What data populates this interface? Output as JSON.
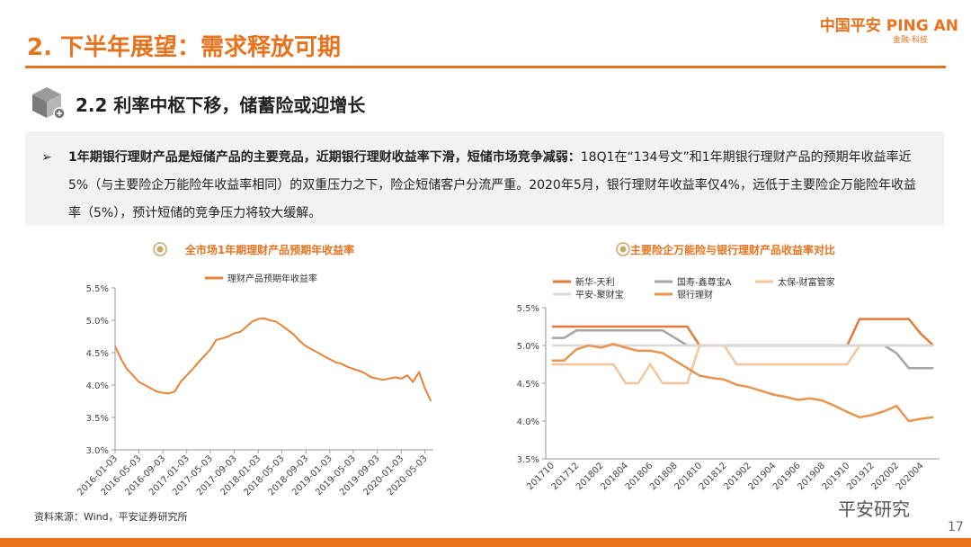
{
  "header": {
    "title": "2. 下半年展望：需求释放可期",
    "logo": "中国平安 PING AN",
    "logo_sub": "金融·科技",
    "subtitle": "2.2 利率中枢下移，储蓄险或迎增长"
  },
  "bullet": {
    "lead": "1年期银行理财产品是短储产品的主要竞品，近期银行理财收益率下滑，短储市场竞争减弱：",
    "text": "18Q1在“134号文”和1年期银行理财产品的预期年收益率近5%（与主要险企万能险年收益率相同）的双重压力之下，险企短储客户分流严重。2020年5月，银行理财年收益率仅4%，远低于主要险企万能险年收益率（5%），预计短储的竞争压力将较大缓解。"
  },
  "source": "资料来源：Wind，平安证券研究所",
  "watermark": "平安研究",
  "page_number": "17",
  "chart_data": [
    {
      "type": "line",
      "title": "全市场1年期理财产品预期年收益率",
      "x": [
        "2016-01-03",
        "2016-02-03",
        "2016-03-03",
        "2016-04-03",
        "2016-05-03",
        "2016-06-03",
        "2016-07-03",
        "2016-08-03",
        "2016-09-03",
        "2016-10-03",
        "2016-11-03",
        "2016-12-03",
        "2017-01-03",
        "2017-02-03",
        "2017-03-03",
        "2017-04-03",
        "2017-05-03",
        "2017-06-03",
        "2017-07-03",
        "2017-08-03",
        "2017-09-03",
        "2017-10-03",
        "2017-11-03",
        "2017-12-03",
        "2018-01-03",
        "2018-02-03",
        "2018-03-03",
        "2018-04-03",
        "2018-05-03",
        "2018-06-03",
        "2018-07-03",
        "2018-08-03",
        "2018-09-03",
        "2018-10-03",
        "2018-11-03",
        "2018-12-03",
        "2019-01-03",
        "2019-02-03",
        "2019-03-03",
        "2019-04-03",
        "2019-05-03",
        "2019-06-03",
        "2019-07-03",
        "2019-08-03",
        "2019-09-03",
        "2019-10-03",
        "2019-11-03",
        "2019-12-03",
        "2020-01-03",
        "2020-02-03",
        "2020-03-03",
        "2020-04-03",
        "2020-05-03",
        "2020-06-03"
      ],
      "series": [
        {
          "name": "理财产品预期年收益率",
          "color": "#e8833a",
          "values": [
            4.6,
            4.4,
            4.25,
            4.15,
            4.05,
            4.0,
            3.95,
            3.9,
            3.88,
            3.87,
            3.9,
            4.05,
            4.15,
            4.25,
            4.35,
            4.45,
            4.55,
            4.7,
            4.72,
            4.75,
            4.8,
            4.82,
            4.9,
            4.98,
            5.02,
            5.03,
            5.0,
            4.98,
            4.92,
            4.85,
            4.78,
            4.68,
            4.6,
            4.55,
            4.5,
            4.45,
            4.4,
            4.35,
            4.33,
            4.28,
            4.25,
            4.22,
            4.18,
            4.12,
            4.1,
            4.08,
            4.1,
            4.12,
            4.1,
            4.15,
            4.05,
            4.2,
            3.95,
            3.75
          ]
        }
      ],
      "xlim": [
        "2016-01-03",
        "2020-06-15"
      ],
      "xticks": [
        "2016-01-03",
        "2016-05-03",
        "2016-09-03",
        "2017-01-03",
        "2017-05-03",
        "2017-09-03",
        "2018-01-03",
        "2018-05-03",
        "2018-09-03",
        "2019-01-03",
        "2019-05-03",
        "2019-09-03",
        "2020-01-03",
        "2020-05-03"
      ],
      "ylim": [
        3.0,
        5.5
      ],
      "yticks": [
        {
          "value": 3.0,
          "label": "3.0%"
        },
        {
          "value": 3.5,
          "label": "3.5%"
        },
        {
          "value": 4.0,
          "label": "4.0%"
        },
        {
          "value": 4.5,
          "label": "4.5%"
        },
        {
          "value": 5.0,
          "label": "5.0%"
        },
        {
          "value": 5.5,
          "label": "5.5%"
        }
      ]
    },
    {
      "type": "line",
      "title": "主要险企万能险与银行理财产品收益率对比",
      "categories": [
        "201710",
        null,
        "201712",
        null,
        "201802",
        null,
        "201804",
        null,
        "201806",
        null,
        "201808",
        null,
        "201810",
        null,
        "201812",
        null,
        "201902",
        null,
        "201904",
        null,
        "201906",
        null,
        "201908",
        null,
        "201910",
        null,
        "201912",
        null,
        "202002",
        null,
        "202004",
        null
      ],
      "series": [
        {
          "name": "新华-天利",
          "color": "#e07b39",
          "values": [
            5.25,
            5.25,
            5.25,
            5.25,
            5.25,
            5.25,
            5.25,
            5.25,
            5.25,
            5.25,
            5.25,
            5.25,
            5.0,
            5.0,
            5.0,
            5.0,
            5.0,
            5.0,
            5.0,
            5.0,
            5.0,
            5.0,
            5.0,
            5.0,
            5.0,
            5.35,
            5.35,
            5.35,
            5.35,
            5.35,
            5.15,
            5.0
          ]
        },
        {
          "name": "国寿-鑫尊宝A",
          "color": "#a5a5a5",
          "values": [
            5.1,
            5.1,
            5.2,
            5.2,
            5.2,
            5.2,
            5.2,
            5.2,
            5.2,
            5.2,
            5.1,
            5.0,
            5.0,
            5.0,
            5.0,
            5.0,
            5.0,
            5.0,
            5.0,
            5.0,
            5.0,
            5.0,
            5.0,
            5.0,
            5.0,
            5.0,
            5.0,
            5.0,
            4.9,
            4.7,
            4.7,
            4.7
          ]
        },
        {
          "name": "太保-财富管家",
          "color": "#f4c49a",
          "values": [
            4.75,
            4.75,
            4.75,
            4.75,
            4.75,
            4.75,
            4.5,
            4.5,
            4.75,
            4.5,
            4.5,
            4.5,
            5.0,
            5.0,
            5.0,
            4.75,
            4.75,
            4.75,
            4.75,
            4.75,
            4.75,
            4.75,
            4.75,
            4.75,
            4.75,
            5.0,
            5.0,
            5.0,
            5.0,
            5.0,
            5.0,
            5.0
          ]
        },
        {
          "name": "平安-聚财宝",
          "color": "#d9d9d9",
          "values": [
            5.0,
            5.0,
            5.0,
            5.0,
            5.0,
            5.0,
            5.0,
            5.0,
            5.0,
            5.0,
            5.0,
            5.0,
            5.0,
            5.0,
            5.0,
            5.0,
            5.0,
            5.0,
            5.0,
            5.0,
            5.0,
            5.0,
            5.0,
            5.0,
            5.0,
            5.0,
            5.0,
            5.0,
            5.0,
            5.0,
            5.0,
            5.0
          ]
        },
        {
          "name": "银行理财",
          "color": "#e8944f",
          "values": [
            4.8,
            4.8,
            4.95,
            5.0,
            4.97,
            5.02,
            4.97,
            4.93,
            4.93,
            4.9,
            4.8,
            4.7,
            4.6,
            4.57,
            4.55,
            4.48,
            4.45,
            4.4,
            4.35,
            4.32,
            4.28,
            4.3,
            4.27,
            4.2,
            4.12,
            4.05,
            4.08,
            4.13,
            4.2,
            4.0,
            4.03,
            4.05
          ]
        }
      ],
      "ylim": [
        3.5,
        5.5
      ],
      "yticks": [
        {
          "value": 3.5,
          "label": "3.5%"
        },
        {
          "value": 4.0,
          "label": "4.0%"
        },
        {
          "value": 4.5,
          "label": "4.5%"
        },
        {
          "value": 5.0,
          "label": "5.0%"
        },
        {
          "value": 5.5,
          "label": "5.5%"
        }
      ]
    }
  ]
}
